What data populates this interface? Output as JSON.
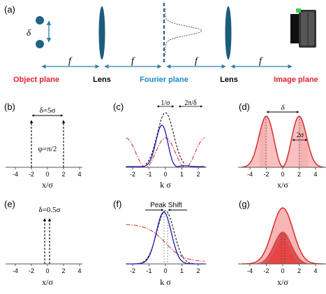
{
  "colors": {
    "arrow_blue": "#2e7fa6",
    "dot_teal": "#1f6482",
    "lens_blue": "#1d5b7e",
    "red_label": "#e8202a",
    "fourier_blue": "#1e88c8",
    "curve_blue": "#1a1ab4",
    "curve_red": "#d42020",
    "fill_red": "#f7b5b5",
    "fill_red_dark": "#e83030",
    "camera_green": "#3fd24a"
  },
  "panel_a": {
    "panel_label": "(a)",
    "delta": "δ",
    "f_labels": [
      "f",
      "f",
      "f",
      "f"
    ],
    "plane_labels": {
      "object": "Object plane",
      "lens1": "Lens",
      "fourier": "Fourier plane",
      "lens2": "Lens",
      "image": "Image plane"
    }
  },
  "panels": {
    "b": {
      "label": "(b)",
      "xlabel": "x/σ",
      "ticks": [
        "-4",
        "-2",
        "0",
        "2",
        "4"
      ],
      "annotation_top": "δ=5σ",
      "annotation_phase": "φ=π/2"
    },
    "c": {
      "label": "(c)",
      "xlabel": "k σ",
      "ticks": [
        "-2",
        "-1",
        "0",
        "1",
        "2"
      ],
      "annotation_left": "1/σ",
      "annotation_right": "2π/δ"
    },
    "d": {
      "label": "(d)",
      "xlabel": "x/σ",
      "ticks": [
        "-4",
        "-2",
        "0",
        "2",
        "4"
      ],
      "annotation_delta": "δ",
      "annotation_width": "2σ"
    },
    "e": {
      "label": "(e)",
      "xlabel": "x/σ",
      "ticks": [
        "-4",
        "-2",
        "0",
        "2",
        "4"
      ],
      "annotation_top": "δ=0.5σ"
    },
    "f": {
      "label": "(f)",
      "xlabel": "k σ",
      "ticks": [
        "-2",
        "-1",
        "0",
        "1",
        "2"
      ],
      "annotation_shift": "Peak Shift"
    },
    "g": {
      "label": "(g)",
      "xlabel": "x/σ",
      "ticks": [
        "-4",
        "-2",
        "0",
        "2",
        "4"
      ]
    }
  }
}
